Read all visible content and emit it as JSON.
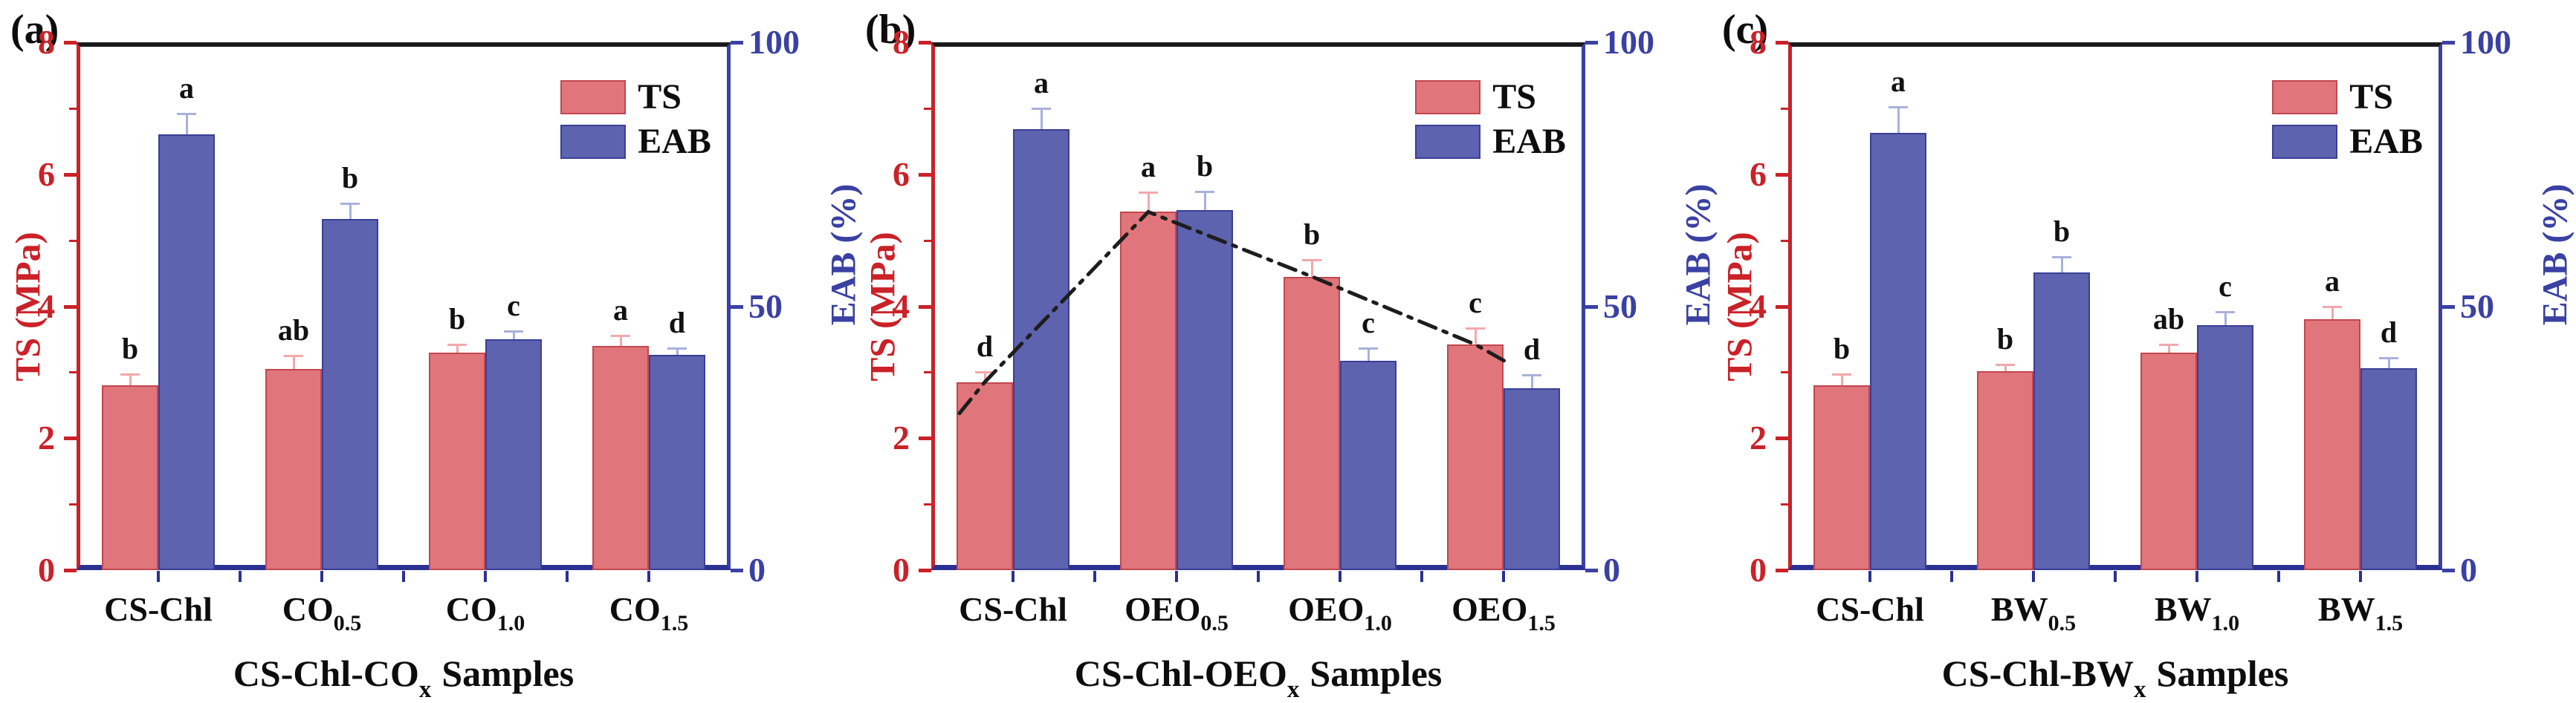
{
  "figure_title": "",
  "colors": {
    "ts_fill": "#e0767b",
    "ts_border": "#c2474f",
    "eab_fill": "#5d63ae",
    "eab_border": "#3a3f98",
    "left_axis": "#cb2128",
    "right_axis": "#3a41a3",
    "baseline": "#2a3192",
    "top_border": "#1a1a1a",
    "ts_error": "#f2a9ad",
    "eab_error": "#a9b0dc",
    "trend_line": "#1d1d1d",
    "letters": "#111111"
  },
  "chart_data": [
    {
      "type": "bar",
      "panel_label": "(a)",
      "xlabel": {
        "base": "CS-Chl-CO",
        "sub": "x",
        "suffix": "Samples"
      },
      "left_axis": {
        "label": "TS (MPa)",
        "range": [
          0,
          8
        ],
        "tick_values": [
          0,
          2,
          4,
          6,
          8
        ],
        "tick_labels": [
          "0",
          "2",
          "4",
          "6",
          "8"
        ],
        "minor_tick_values": [
          1,
          3,
          5,
          7
        ]
      },
      "right_axis": {
        "label": "EAB (%)",
        "range": [
          0,
          100
        ],
        "tick_values": [
          0,
          50,
          100
        ],
        "tick_labels": [
          "0",
          "50",
          "100"
        ]
      },
      "legend": {
        "position": "top-right",
        "entries": [
          {
            "label": "TS"
          },
          {
            "label": "EAB"
          }
        ]
      },
      "categories": [
        {
          "base": "CS-Chl",
          "sub": ""
        },
        {
          "base": "CO",
          "sub": "0.5"
        },
        {
          "base": "CO",
          "sub": "1.0"
        },
        {
          "base": "CO",
          "sub": "1.5"
        }
      ],
      "series": [
        {
          "name": "TS",
          "axis": "left",
          "values": [
            2.8,
            3.05,
            3.3,
            3.4
          ],
          "errors": [
            0.17,
            0.2,
            0.12,
            0.15
          ],
          "sig_letters": [
            "b",
            "ab",
            "b",
            "a"
          ]
        },
        {
          "name": "EAB",
          "axis": "right",
          "values": [
            82.5,
            66.5,
            43.8,
            40.8
          ],
          "errors": [
            4,
            3,
            1.5,
            1.2
          ],
          "sig_letters": [
            "a",
            "b",
            "c",
            "d"
          ]
        }
      ],
      "grid": false,
      "trend_line": null
    },
    {
      "type": "bar",
      "panel_label": "(b)",
      "xlabel": {
        "base": "CS-Chl-OEO",
        "sub": "x",
        "suffix": "Samples"
      },
      "left_axis": {
        "label": "TS (MPa)",
        "range": [
          0,
          8
        ],
        "tick_values": [
          0,
          2,
          4,
          6,
          8
        ],
        "tick_labels": [
          "0",
          "2",
          "4",
          "6",
          "8"
        ],
        "minor_tick_values": [
          1,
          3,
          5,
          7
        ]
      },
      "right_axis": {
        "label": "EAB (%)",
        "range": [
          0,
          100
        ],
        "tick_values": [
          0,
          50,
          100
        ],
        "tick_labels": [
          "0",
          "50",
          "100"
        ]
      },
      "legend": {
        "position": "top-right",
        "entries": [
          {
            "label": "TS"
          },
          {
            "label": "EAB"
          }
        ]
      },
      "categories": [
        {
          "base": "CS-Chl",
          "sub": ""
        },
        {
          "base": "OEO",
          "sub": "0.5"
        },
        {
          "base": "OEO",
          "sub": "1.0"
        },
        {
          "base": "OEO",
          "sub": "1.5"
        }
      ],
      "series": [
        {
          "name": "TS",
          "axis": "left",
          "values": [
            2.85,
            5.43,
            4.45,
            3.42
          ],
          "errors": [
            0.15,
            0.3,
            0.25,
            0.25
          ],
          "sig_letters": [
            "d",
            "a",
            "b",
            "c"
          ]
        },
        {
          "name": "EAB",
          "axis": "right",
          "values": [
            83.5,
            68.2,
            39.6,
            34.5
          ],
          "errors": [
            4,
            3.5,
            2.5,
            2.5
          ],
          "sig_letters": [
            "a",
            "b",
            "c",
            "d"
          ]
        }
      ],
      "grid": false,
      "trend_line": {
        "follows_series": "TS",
        "style": "dash-dot"
      }
    },
    {
      "type": "bar",
      "panel_label": "(c)",
      "xlabel": {
        "base": "CS-Chl-BW",
        "sub": "x",
        "suffix": "Samples"
      },
      "left_axis": {
        "label": "TS (MPa)",
        "range": [
          0,
          8
        ],
        "tick_values": [
          0,
          2,
          4,
          6,
          8
        ],
        "tick_labels": [
          "0",
          "2",
          "4",
          "6",
          "8"
        ],
        "minor_tick_values": [
          1,
          3,
          5,
          7
        ]
      },
      "right_axis": {
        "label": "EAB (%)",
        "range": [
          0,
          100
        ],
        "tick_values": [
          0,
          50,
          100
        ],
        "tick_labels": [
          "0",
          "50",
          "100"
        ]
      },
      "legend": {
        "position": "top-right",
        "entries": [
          {
            "label": "TS"
          },
          {
            "label": "EAB"
          }
        ]
      },
      "categories": [
        {
          "base": "CS-Chl",
          "sub": ""
        },
        {
          "base": "BW",
          "sub": "0.5"
        },
        {
          "base": "BW",
          "sub": "1.0"
        },
        {
          "base": "BW",
          "sub": "1.5"
        }
      ],
      "series": [
        {
          "name": "TS",
          "axis": "left",
          "values": [
            2.8,
            3.02,
            3.3,
            3.8
          ],
          "errors": [
            0.17,
            0.1,
            0.12,
            0.2
          ],
          "sig_letters": [
            "b",
            "b",
            "ab",
            "a"
          ]
        },
        {
          "name": "EAB",
          "axis": "right",
          "values": [
            82.8,
            56.4,
            46.4,
            38.2
          ],
          "errors": [
            5,
            3,
            2.5,
            2
          ],
          "sig_letters": [
            "a",
            "b",
            "c",
            "d"
          ]
        }
      ],
      "grid": false,
      "trend_line": null
    }
  ]
}
